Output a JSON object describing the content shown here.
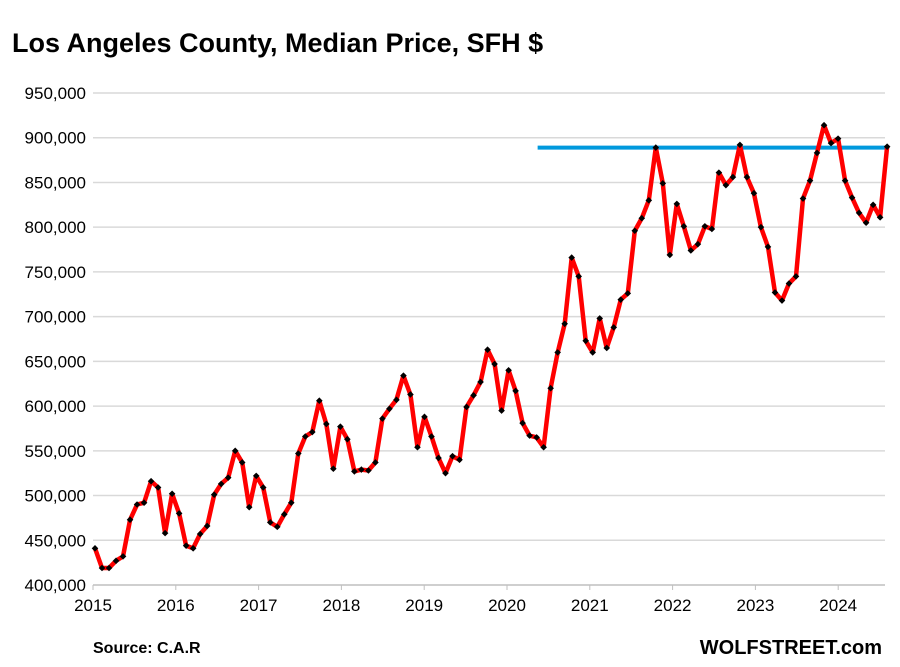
{
  "chart_data": {
    "type": "line",
    "title": "Los Angeles County, Median Price, SFH $",
    "xlabel": "",
    "ylabel": "",
    "ylim": [
      400000,
      950000
    ],
    "y_ticks": [
      "400,000",
      "450,000",
      "500,000",
      "550,000",
      "600,000",
      "650,000",
      "700,000",
      "750,000",
      "800,000",
      "850,000",
      "900,000",
      "950,000"
    ],
    "x_ticks": [
      "2015",
      "2016",
      "2017",
      "2018",
      "2019",
      "2020",
      "2021",
      "2022",
      "2023",
      "2024"
    ],
    "grid": true,
    "start": "2015-01",
    "frequency": "monthly",
    "series": [
      {
        "name": "Median Price",
        "color": "#ff0000",
        "values": [
          441000,
          419000,
          419000,
          427000,
          432000,
          473000,
          490000,
          492000,
          516000,
          509000,
          458000,
          502000,
          480000,
          444000,
          441000,
          457000,
          466000,
          501000,
          513000,
          520000,
          550000,
          537000,
          487000,
          522000,
          509000,
          470000,
          465000,
          479000,
          492000,
          547000,
          566000,
          571000,
          606000,
          580000,
          530000,
          577000,
          563000,
          527000,
          529000,
          528000,
          537000,
          586000,
          597000,
          607000,
          634000,
          613000,
          554000,
          588000,
          566000,
          542000,
          525000,
          544000,
          540000,
          599000,
          612000,
          627000,
          663000,
          647000,
          595000,
          640000,
          617000,
          581000,
          567000,
          565000,
          554000,
          620000,
          660000,
          692000,
          766000,
          745000,
          673000,
          660000,
          698000,
          665000,
          688000,
          719000,
          726000,
          796000,
          810000,
          830000,
          889000,
          849000,
          769000,
          826000,
          801000,
          774000,
          781000,
          801000,
          798000,
          861000,
          847000,
          856000,
          892000,
          856000,
          838000,
          800000,
          778000,
          727000,
          718000,
          737000,
          745000,
          832000,
          852000,
          883000,
          914000,
          894000,
          899000,
          852000,
          833000,
          816000,
          805000,
          825000,
          811000,
          890000
        ]
      }
    ],
    "reference_line": {
      "value": 889000,
      "from": "2020-04",
      "to": "2024-06",
      "color": "#0099dd"
    }
  },
  "source": "Source:  C.A.R",
  "brand": "WOLFSTREET.com"
}
